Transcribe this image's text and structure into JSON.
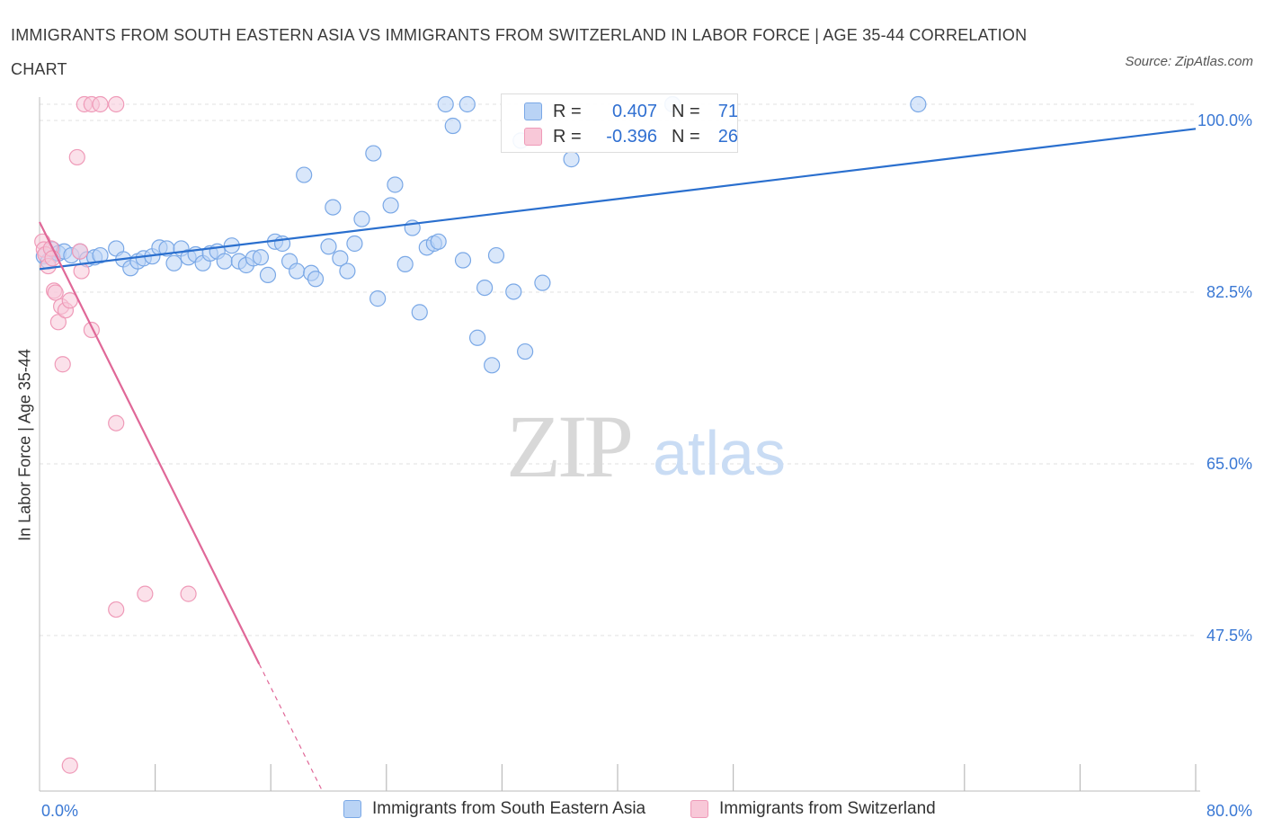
{
  "header": {
    "title": "IMMIGRANTS FROM SOUTH EASTERN ASIA VS IMMIGRANTS FROM SWITZERLAND IN LABOR FORCE | AGE 35-44 CORRELATION CHART",
    "source": "Source: ZipAtlas.com"
  },
  "legend": {
    "r_label": "R =",
    "n_label": "N =",
    "series": [
      {
        "r": "0.407",
        "n": "71"
      },
      {
        "r": "-0.396",
        "n": "26"
      }
    ]
  },
  "watermark": {
    "zip": "ZIP",
    "atlas": "atlas"
  },
  "colors": {
    "blue_fill": "#b9d3f5",
    "blue_edge": "#7aa8e6",
    "blue_line": "#2a6fce",
    "pink_fill": "#f8c8d8",
    "pink_edge": "#ef9ab8",
    "pink_line": "#e06898",
    "tick_text": "#3a78d4",
    "grid": "#e2e2e2"
  },
  "chart_data": {
    "type": "scatter",
    "xlabel": "",
    "ylabel": "In Labor Force | Age 35-44",
    "xlim": [
      0,
      80
    ],
    "ylim": [
      30,
      101
    ],
    "x_tick_labels": [
      {
        "value": 0,
        "label": "0.0%"
      },
      {
        "value": 80,
        "label": "80.0%"
      }
    ],
    "y_tick_labels": [
      {
        "value": 100,
        "label": "100.0%"
      },
      {
        "value": 82.5,
        "label": "82.5%"
      },
      {
        "value": 65,
        "label": "65.0%"
      },
      {
        "value": 47.5,
        "label": "47.5%"
      }
    ],
    "x_minor_ticks": [
      8,
      16,
      24,
      32,
      40,
      48,
      64,
      72,
      80
    ],
    "grid": true,
    "legend_position": "top-center",
    "series": [
      {
        "name": "Immigrants from South Eastern Asia",
        "color": "blue",
        "trend": {
          "x": [
            0,
            80
          ],
          "y": [
            83.2,
            97.5
          ],
          "dashed_from": null
        },
        "points": [
          [
            0.3,
            84.5
          ],
          [
            0.6,
            84.0
          ],
          [
            0.9,
            85.2
          ],
          [
            1.3,
            84.8
          ],
          [
            1.7,
            85.0
          ],
          [
            2.2,
            84.6
          ],
          [
            2.8,
            85.0
          ],
          [
            3.3,
            84.2
          ],
          [
            3.8,
            84.4
          ],
          [
            4.2,
            84.6
          ],
          [
            5.3,
            85.3
          ],
          [
            5.8,
            84.2
          ],
          [
            6.3,
            83.3
          ],
          [
            6.8,
            84.0
          ],
          [
            7.2,
            84.3
          ],
          [
            7.8,
            84.5
          ],
          [
            8.3,
            85.4
          ],
          [
            8.8,
            85.3
          ],
          [
            9.3,
            83.8
          ],
          [
            9.8,
            85.3
          ],
          [
            10.3,
            84.4
          ],
          [
            10.8,
            84.7
          ],
          [
            11.3,
            83.8
          ],
          [
            11.8,
            84.8
          ],
          [
            12.3,
            85.0
          ],
          [
            12.8,
            84.0
          ],
          [
            13.3,
            85.6
          ],
          [
            13.8,
            84.0
          ],
          [
            14.3,
            83.6
          ],
          [
            14.8,
            84.3
          ],
          [
            15.3,
            84.4
          ],
          [
            15.8,
            82.6
          ],
          [
            16.3,
            86.0
          ],
          [
            16.8,
            85.8
          ],
          [
            17.3,
            84.0
          ],
          [
            17.8,
            83.0
          ],
          [
            18.3,
            92.8
          ],
          [
            18.8,
            82.8
          ],
          [
            19.1,
            82.2
          ],
          [
            20.0,
            85.5
          ],
          [
            20.3,
            89.5
          ],
          [
            20.8,
            84.3
          ],
          [
            21.3,
            83.0
          ],
          [
            21.8,
            85.8
          ],
          [
            22.3,
            88.3
          ],
          [
            23.1,
            95.0
          ],
          [
            23.4,
            80.2
          ],
          [
            24.3,
            89.7
          ],
          [
            24.6,
            91.8
          ],
          [
            25.3,
            83.7
          ],
          [
            25.8,
            87.4
          ],
          [
            26.3,
            78.8
          ],
          [
            26.8,
            85.4
          ],
          [
            27.3,
            85.8
          ],
          [
            27.6,
            86.0
          ],
          [
            28.1,
            100.0
          ],
          [
            28.6,
            97.8
          ],
          [
            29.6,
            100.0
          ],
          [
            29.3,
            84.1
          ],
          [
            30.3,
            76.2
          ],
          [
            30.8,
            81.3
          ],
          [
            31.3,
            73.4
          ],
          [
            31.6,
            84.6
          ],
          [
            32.8,
            80.9
          ],
          [
            33.3,
            96.3
          ],
          [
            33.6,
            74.8
          ],
          [
            34.8,
            81.8
          ],
          [
            36.8,
            94.4
          ],
          [
            43.8,
            100.0
          ],
          [
            60.8,
            100.0
          ],
          [
            43.8,
            100.0
          ]
        ]
      },
      {
        "name": "Immigrants from Switzerland",
        "color": "pink",
        "trend": {
          "x": [
            0,
            19.5
          ],
          "y": [
            88.0,
            30.2
          ],
          "dashed_from": 15.2
        },
        "points": [
          [
            0.2,
            86.0
          ],
          [
            0.3,
            85.2
          ],
          [
            0.4,
            84.7
          ],
          [
            0.6,
            83.5
          ],
          [
            0.8,
            85.3
          ],
          [
            0.9,
            84.3
          ],
          [
            1.0,
            81.0
          ],
          [
            1.1,
            80.8
          ],
          [
            1.3,
            77.8
          ],
          [
            1.5,
            79.4
          ],
          [
            1.6,
            73.5
          ],
          [
            1.8,
            79.0
          ],
          [
            2.1,
            80.0
          ],
          [
            2.6,
            94.6
          ],
          [
            2.8,
            85.0
          ],
          [
            2.9,
            83.0
          ],
          [
            3.1,
            100.0
          ],
          [
            3.6,
            100.0
          ],
          [
            4.2,
            100.0
          ],
          [
            5.3,
            100.0
          ],
          [
            3.6,
            77.0
          ],
          [
            5.3,
            67.5
          ],
          [
            5.3,
            48.5
          ],
          [
            7.3,
            50.1
          ],
          [
            10.3,
            50.1
          ],
          [
            2.1,
            32.6
          ]
        ]
      }
    ]
  },
  "bottom_legend": [
    {
      "label": "Immigrants from South Eastern Asia"
    },
    {
      "label": "Immigrants from Switzerland"
    }
  ]
}
